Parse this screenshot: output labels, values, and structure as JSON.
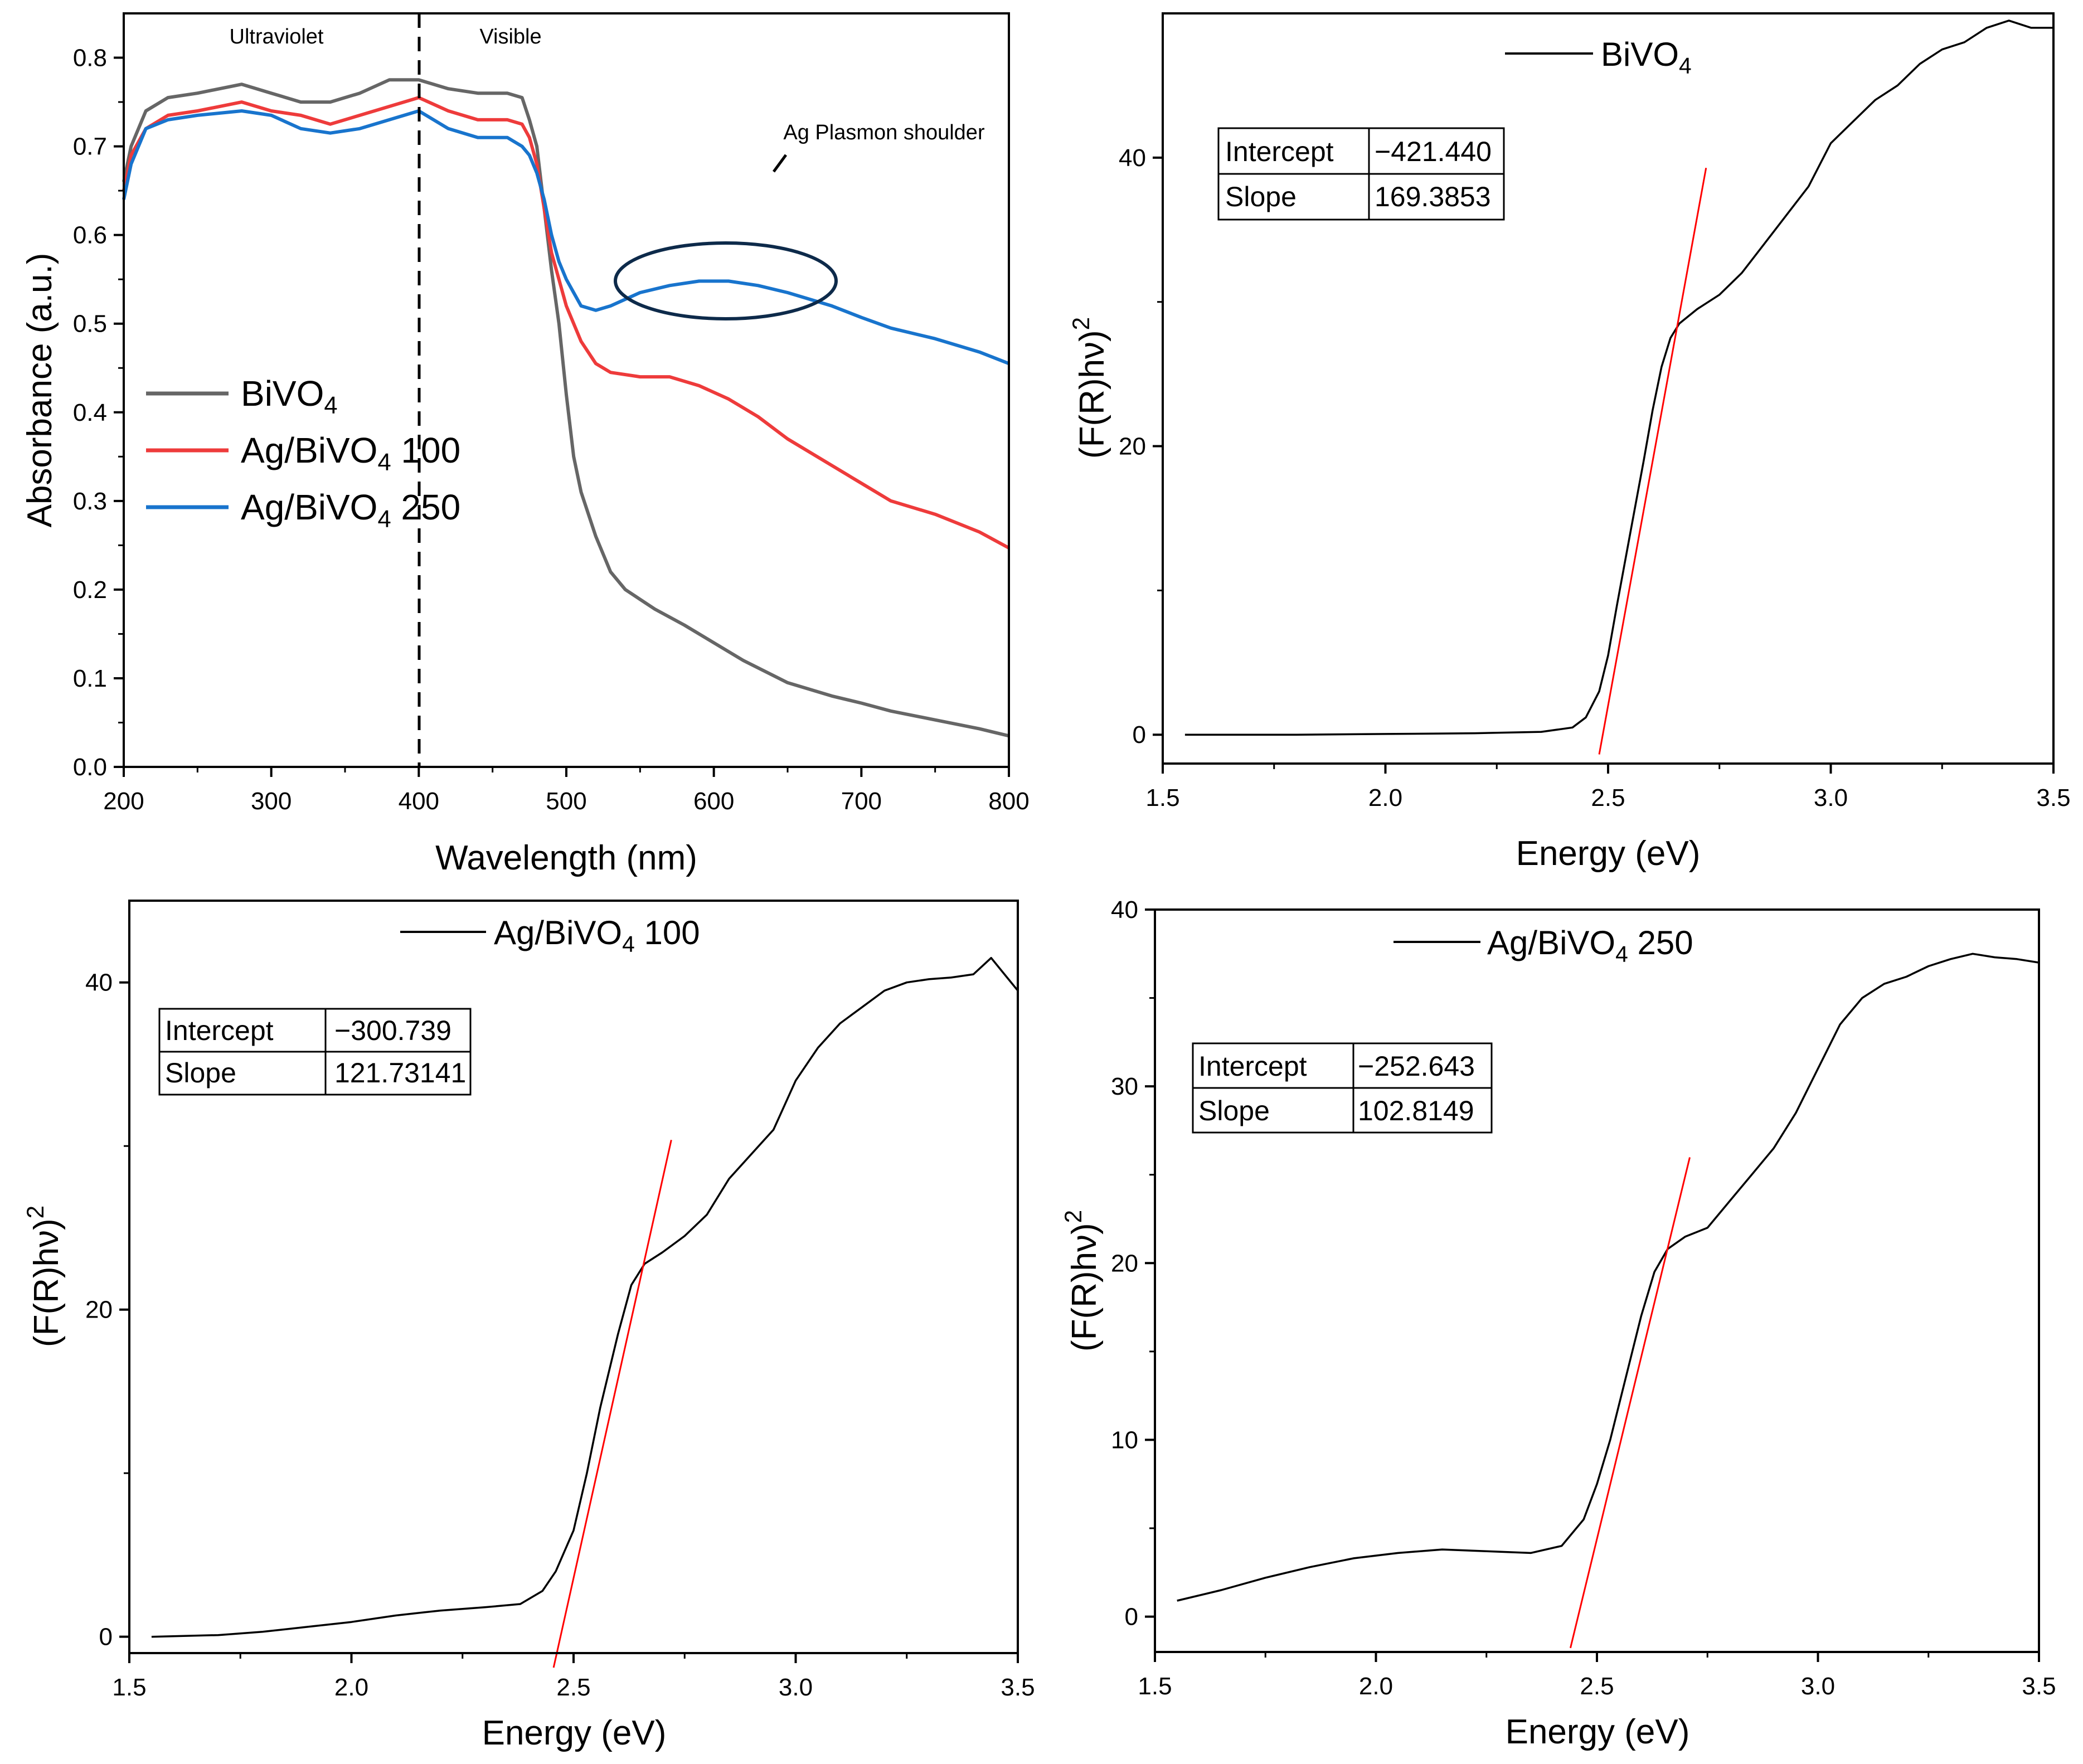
{
  "chart_data": [
    {
      "id": "a",
      "type": "line",
      "xlabel": "Wavelength (nm)",
      "ylabel": "Absorbance (a.u.)",
      "xlim": [
        200,
        800
      ],
      "ylim": [
        0,
        0.85
      ],
      "xticks": [
        200,
        300,
        400,
        500,
        600,
        700,
        800
      ],
      "xtick_labels": [
        "200",
        "300",
        "400",
        "500",
        "600",
        "700",
        "800"
      ],
      "yticks": [
        0.0,
        0.1,
        0.2,
        0.3,
        0.4,
        0.5,
        0.6,
        0.7,
        0.8
      ],
      "ytick_labels": [
        "0.0",
        "0.1",
        "0.2",
        "0.3",
        "0.4",
        "0.5",
        "0.6",
        "0.7",
        "0.8"
      ],
      "region_labels": [
        "Ultraviolet",
        "Visible"
      ],
      "divider_x": 400,
      "annotation": "Ag Plasmon shoulder",
      "series": [
        {
          "name": "BiVO4",
          "label_main": "BiVO",
          "label_sub": "4",
          "label_tail": "",
          "color": "#666666",
          "x": [
            200,
            205,
            215,
            230,
            250,
            280,
            300,
            320,
            340,
            360,
            380,
            400,
            420,
            440,
            460,
            470,
            475,
            480,
            485,
            490,
            495,
            500,
            505,
            510,
            520,
            530,
            540,
            560,
            580,
            600,
            620,
            650,
            680,
            700,
            720,
            750,
            780,
            800
          ],
          "y": [
            0.66,
            0.7,
            0.74,
            0.755,
            0.76,
            0.77,
            0.76,
            0.75,
            0.75,
            0.76,
            0.775,
            0.775,
            0.765,
            0.76,
            0.76,
            0.755,
            0.73,
            0.7,
            0.63,
            0.56,
            0.5,
            0.42,
            0.35,
            0.31,
            0.26,
            0.22,
            0.2,
            0.178,
            0.16,
            0.14,
            0.12,
            0.095,
            0.08,
            0.072,
            0.063,
            0.053,
            0.043,
            0.035
          ]
        },
        {
          "name": "Ag/BiVO4 100",
          "label_main": "Ag/BiVO",
          "label_sub": "4",
          "label_tail": " 100",
          "color": "#ee3b3b",
          "x": [
            200,
            205,
            215,
            230,
            250,
            280,
            300,
            320,
            340,
            360,
            380,
            400,
            420,
            440,
            460,
            470,
            475,
            480,
            485,
            490,
            500,
            510,
            520,
            530,
            550,
            570,
            590,
            610,
            630,
            650,
            680,
            700,
            720,
            750,
            780,
            800
          ],
          "y": [
            0.65,
            0.69,
            0.72,
            0.735,
            0.74,
            0.75,
            0.74,
            0.735,
            0.725,
            0.735,
            0.745,
            0.755,
            0.74,
            0.73,
            0.73,
            0.725,
            0.71,
            0.68,
            0.63,
            0.58,
            0.52,
            0.48,
            0.455,
            0.445,
            0.44,
            0.44,
            0.43,
            0.415,
            0.395,
            0.37,
            0.34,
            0.32,
            0.3,
            0.285,
            0.265,
            0.247
          ]
        },
        {
          "name": "Ag/BiVO4 250",
          "label_main": "Ag/BiVO",
          "label_sub": "4",
          "label_tail": " 250",
          "color": "#1874cd",
          "x": [
            200,
            205,
            215,
            230,
            250,
            280,
            300,
            320,
            340,
            360,
            380,
            400,
            420,
            440,
            460,
            470,
            475,
            480,
            485,
            490,
            495,
            500,
            505,
            510,
            520,
            530,
            550,
            570,
            590,
            610,
            630,
            650,
            680,
            700,
            720,
            750,
            780,
            800
          ],
          "y": [
            0.64,
            0.68,
            0.72,
            0.73,
            0.735,
            0.74,
            0.735,
            0.72,
            0.715,
            0.72,
            0.73,
            0.74,
            0.72,
            0.71,
            0.71,
            0.7,
            0.69,
            0.67,
            0.64,
            0.6,
            0.57,
            0.55,
            0.535,
            0.52,
            0.515,
            0.52,
            0.535,
            0.543,
            0.548,
            0.548,
            0.543,
            0.535,
            0.52,
            0.507,
            0.495,
            0.483,
            0.468,
            0.455
          ]
        }
      ]
    },
    {
      "id": "b",
      "type": "line",
      "xlabel": "Energy (eV)",
      "ylabel_main": "(F(R)hν)",
      "ylabel_sup": "2",
      "xlim": [
        1.5,
        3.5
      ],
      "ylim": [
        -2,
        50
      ],
      "xticks": [
        1.5,
        2.0,
        2.5,
        3.0,
        3.5
      ],
      "xtick_labels": [
        "1.5",
        "2.0",
        "2.5",
        "3.0",
        "3.5"
      ],
      "yticks": [
        0,
        20,
        40
      ],
      "ytick_labels": [
        "0",
        "20",
        "40"
      ],
      "legend": {
        "label_main": "BiVO",
        "label_sub": "4",
        "label_tail": ""
      },
      "table": {
        "intercept_label": "Intercept",
        "intercept_value": "−421.440",
        "slope_label": "Slope",
        "slope_value": "169.3853"
      },
      "fit": {
        "slope": 169.3853,
        "intercept": -421.44,
        "x_start": 2.48,
        "x_end": 2.72
      },
      "series": [
        {
          "name": "BiVO4",
          "color": "#000000",
          "x": [
            1.55,
            1.8,
            2.0,
            2.2,
            2.35,
            2.42,
            2.45,
            2.48,
            2.5,
            2.52,
            2.55,
            2.58,
            2.6,
            2.62,
            2.64,
            2.66,
            2.7,
            2.75,
            2.8,
            2.85,
            2.9,
            2.95,
            3.0,
            3.05,
            3.1,
            3.15,
            3.2,
            3.25,
            3.3,
            3.35,
            3.4,
            3.45,
            3.5
          ],
          "y": [
            0,
            0,
            0.05,
            0.1,
            0.2,
            0.5,
            1.2,
            3,
            5.5,
            9,
            14,
            19,
            22.5,
            25.5,
            27.5,
            28.5,
            29.5,
            30.5,
            32,
            34,
            36,
            38,
            41,
            42.5,
            44,
            45,
            46.5,
            47.5,
            48,
            49,
            49.5,
            49,
            49
          ]
        }
      ]
    },
    {
      "id": "c",
      "type": "line",
      "xlabel": "Energy (eV)",
      "ylabel_main": "(F(R)hν)",
      "ylabel_sup": "2",
      "xlim": [
        1.5,
        3.5
      ],
      "ylim": [
        -1,
        45
      ],
      "xticks": [
        1.5,
        2.0,
        2.5,
        3.0,
        3.5
      ],
      "xtick_labels": [
        "1.5",
        "2.0",
        "2.5",
        "3.0",
        "3.5"
      ],
      "yticks": [
        0,
        20,
        40
      ],
      "ytick_labels": [
        "0",
        "20",
        "40"
      ],
      "legend": {
        "label_main": "Ag/BiVO",
        "label_sub": "4",
        "label_tail": " 100"
      },
      "table": {
        "intercept_label": "Intercept",
        "intercept_value": "−300.739",
        "slope_label": "Slope",
        "slope_value": "121.73141"
      },
      "fit": {
        "slope": 121.73141,
        "intercept": -300.739,
        "x_start": 2.455,
        "x_end": 2.72
      },
      "series": [
        {
          "name": "Ag/BiVO4 100",
          "color": "#000000",
          "x": [
            1.55,
            1.7,
            1.8,
            1.9,
            2.0,
            2.1,
            2.2,
            2.3,
            2.38,
            2.43,
            2.46,
            2.5,
            2.53,
            2.56,
            2.6,
            2.63,
            2.66,
            2.7,
            2.75,
            2.8,
            2.85,
            2.9,
            2.95,
            3.0,
            3.05,
            3.1,
            3.15,
            3.2,
            3.25,
            3.3,
            3.35,
            3.4,
            3.44,
            3.47,
            3.5
          ],
          "y": [
            0,
            0.1,
            0.3,
            0.6,
            0.9,
            1.3,
            1.6,
            1.8,
            2.0,
            2.8,
            4,
            6.5,
            10,
            14,
            18.5,
            21.5,
            22.8,
            23.5,
            24.5,
            25.8,
            28,
            29.5,
            31,
            34,
            36,
            37.5,
            38.5,
            39.5,
            40,
            40.2,
            40.3,
            40.5,
            41.5,
            40.5,
            39.5
          ]
        }
      ]
    },
    {
      "id": "d",
      "type": "line",
      "xlabel": "Energy (eV)",
      "ylabel_main": "(F(R)hν)",
      "ylabel_sup": "2",
      "xlim": [
        1.5,
        3.5
      ],
      "ylim": [
        -2,
        40
      ],
      "xticks": [
        1.5,
        2.0,
        2.5,
        3.0,
        3.5
      ],
      "xtick_labels": [
        "1.5",
        "2.0",
        "2.5",
        "3.0",
        "3.5"
      ],
      "yticks": [
        0,
        10,
        20,
        30,
        40
      ],
      "ytick_labels": [
        "0",
        "10",
        "20",
        "30",
        "40"
      ],
      "legend": {
        "label_main": "Ag/BiVO",
        "label_sub": "4",
        "label_tail": " 250"
      },
      "table": {
        "intercept_label": "Intercept",
        "intercept_value": "−252.643",
        "slope_label": "Slope",
        "slope_value": "102.8149"
      },
      "fit": {
        "slope": 102.8149,
        "intercept": -252.643,
        "x_start": 2.44,
        "x_end": 2.71
      },
      "series": [
        {
          "name": "Ag/BiVO4 250",
          "color": "#000000",
          "x": [
            1.55,
            1.65,
            1.75,
            1.85,
            1.95,
            2.05,
            2.15,
            2.25,
            2.35,
            2.42,
            2.47,
            2.5,
            2.53,
            2.56,
            2.6,
            2.63,
            2.66,
            2.7,
            2.75,
            2.8,
            2.85,
            2.9,
            2.95,
            3.0,
            3.05,
            3.1,
            3.15,
            3.2,
            3.25,
            3.3,
            3.35,
            3.4,
            3.45,
            3.5
          ],
          "y": [
            0.9,
            1.5,
            2.2,
            2.8,
            3.3,
            3.6,
            3.8,
            3.7,
            3.6,
            4,
            5.5,
            7.5,
            10,
            13,
            17,
            19.5,
            20.8,
            21.5,
            22,
            23.5,
            25,
            26.5,
            28.5,
            31,
            33.5,
            35,
            35.8,
            36.2,
            36.8,
            37.2,
            37.5,
            37.3,
            37.2,
            37
          ]
        }
      ]
    }
  ]
}
